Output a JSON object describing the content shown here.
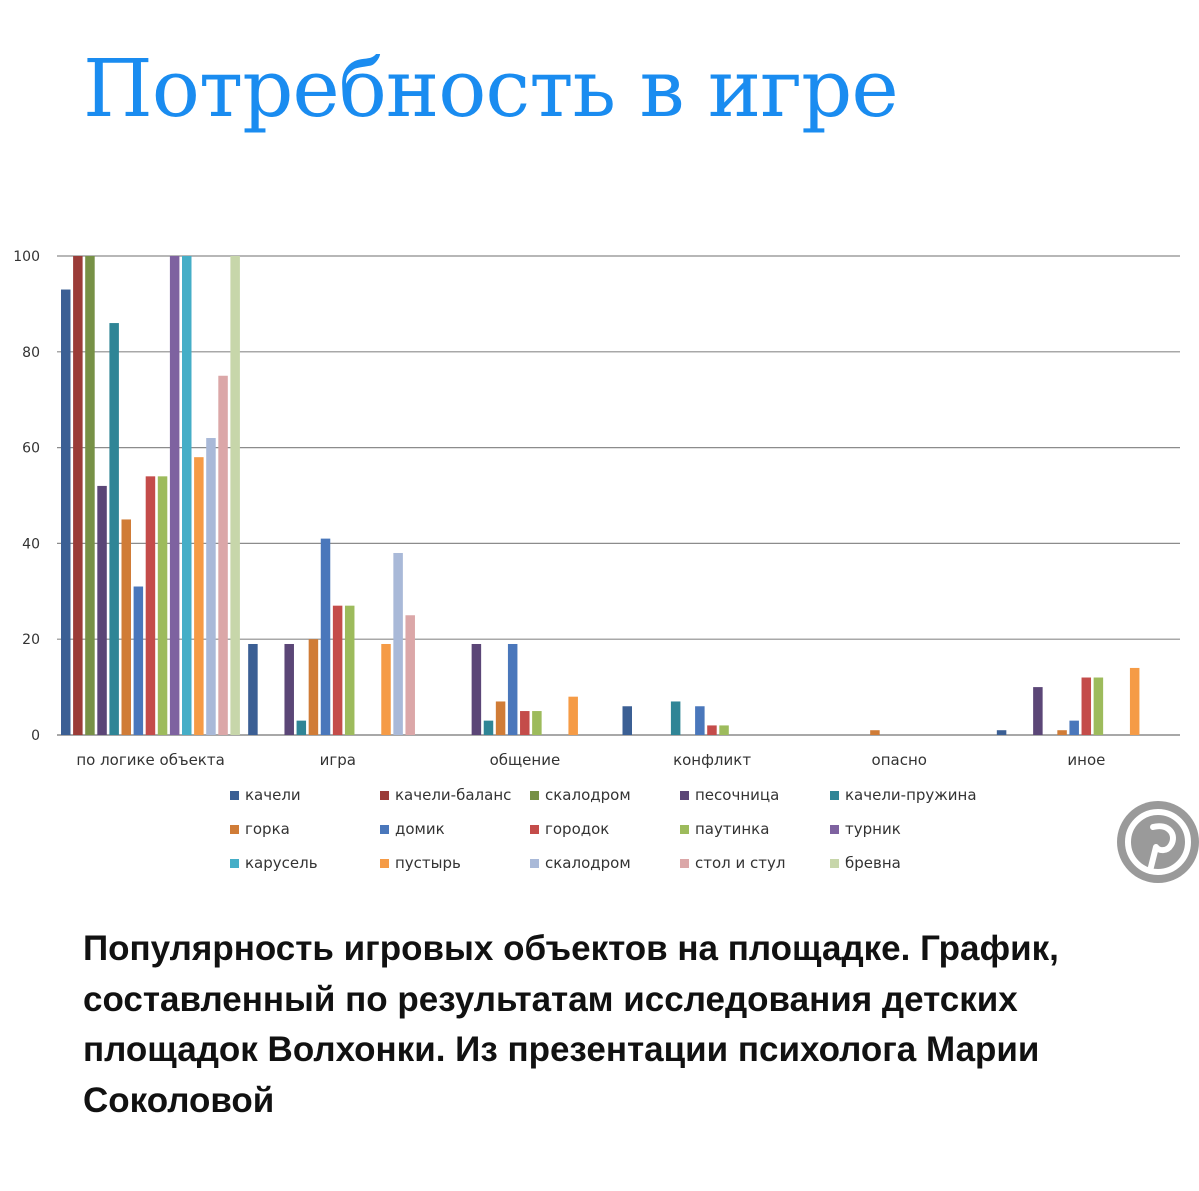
{
  "slide": {
    "title": "Потребность в игре",
    "caption": "Популярность игровых объектов на площадке. График, составленный по результатам исследования детских площадок Волхонки. Из презентации психолога Марии Соколовой"
  },
  "icons": {
    "pinterest": "pinterest-icon"
  },
  "chart_data": {
    "type": "bar",
    "categories": [
      "по логике объекта",
      "игра",
      "общение",
      "конфликт",
      "опасно",
      "иное"
    ],
    "ylim": [
      0,
      100
    ],
    "yticks": [
      0,
      20,
      40,
      60,
      80,
      100
    ],
    "grid": true,
    "legend_position": "bottom",
    "series": [
      {
        "name": "качели",
        "color": "#3b5f94",
        "values": [
          93,
          19,
          0,
          6,
          0,
          1
        ]
      },
      {
        "name": "качели-баланс",
        "color": "#9b3c38",
        "values": [
          100,
          0,
          0,
          0,
          0,
          0
        ]
      },
      {
        "name": "скалодром",
        "color": "#779146",
        "values": [
          100,
          0,
          0,
          0,
          0,
          0
        ]
      },
      {
        "name": "песочница",
        "color": "#5b4677",
        "values": [
          52,
          19,
          19,
          0,
          0,
          10
        ]
      },
      {
        "name": "качели-пружина",
        "color": "#2f8596",
        "values": [
          86,
          3,
          3,
          7,
          0,
          0
        ]
      },
      {
        "name": "горка",
        "color": "#d07c37",
        "values": [
          45,
          20,
          7,
          0,
          1,
          1
        ]
      },
      {
        "name": "домик",
        "color": "#4a77bb",
        "values": [
          31,
          41,
          19,
          6,
          0,
          3
        ]
      },
      {
        "name": "городок",
        "color": "#c44c4a",
        "values": [
          54,
          27,
          5,
          2,
          0,
          12
        ]
      },
      {
        "name": "паутинка",
        "color": "#9dbb5c",
        "values": [
          54,
          27,
          5,
          2,
          0,
          12
        ]
      },
      {
        "name": "турник",
        "color": "#7e62a0",
        "values": [
          100,
          0,
          0,
          0,
          0,
          0
        ]
      },
      {
        "name": "карусель",
        "color": "#45aec7",
        "values": [
          100,
          0,
          0,
          0,
          0,
          0
        ]
      },
      {
        "name": "пустырь",
        "color": "#f59b46",
        "values": [
          58,
          19,
          8,
          0,
          0,
          14
        ]
      },
      {
        "name": "скалодром",
        "color": "#a9b9d8",
        "values": [
          62,
          38,
          0,
          0,
          0,
          0
        ]
      },
      {
        "name": "стол и стул",
        "color": "#dba7a8",
        "values": [
          75,
          25,
          0,
          0,
          0,
          0
        ]
      },
      {
        "name": "бревна",
        "color": "#c7d6aa",
        "values": [
          100,
          0,
          0,
          0,
          0,
          0
        ]
      }
    ]
  }
}
